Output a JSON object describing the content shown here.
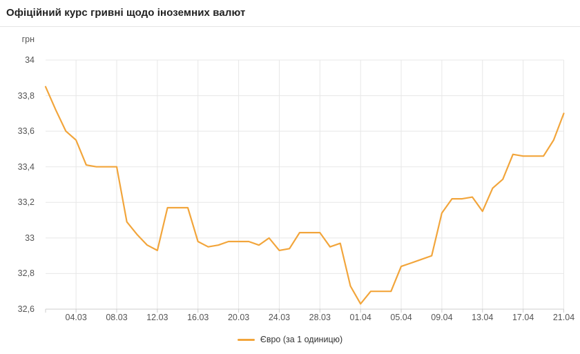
{
  "header": {
    "title": "Офіційний курс гривні щодо іноземних валют"
  },
  "chart_data": {
    "type": "line",
    "title": "Офіційний курс гривні щодо іноземних валют",
    "ylabel": "грн",
    "ylim": [
      32.6,
      34
    ],
    "grid": true,
    "legend_position": "bottom",
    "x": [
      "01.03",
      "02.03",
      "03.03",
      "04.03",
      "05.03",
      "06.03",
      "07.03",
      "08.03",
      "09.03",
      "10.03",
      "11.03",
      "12.03",
      "13.03",
      "14.03",
      "15.03",
      "16.03",
      "17.03",
      "18.03",
      "19.03",
      "20.03",
      "21.03",
      "22.03",
      "23.03",
      "24.03",
      "25.03",
      "26.03",
      "27.03",
      "28.03",
      "29.03",
      "30.03",
      "31.03",
      "01.04",
      "02.04",
      "03.04",
      "04.04",
      "05.04",
      "06.04",
      "07.04",
      "08.04",
      "09.04",
      "10.04",
      "11.04",
      "12.04",
      "13.04",
      "14.04",
      "15.04",
      "16.04",
      "17.04",
      "18.04",
      "19.04",
      "20.04",
      "21.04"
    ],
    "series": [
      {
        "name": "Євро (за 1 одиницю)",
        "color": "#F2A53B",
        "values": [
          33.85,
          33.72,
          33.6,
          33.55,
          33.41,
          33.4,
          33.4,
          33.4,
          33.09,
          33.02,
          32.96,
          32.93,
          33.17,
          33.17,
          33.17,
          32.98,
          32.95,
          32.96,
          32.98,
          32.98,
          32.98,
          32.96,
          33.0,
          32.93,
          32.94,
          33.03,
          33.03,
          33.03,
          32.95,
          32.97,
          32.73,
          32.63,
          32.7,
          32.7,
          32.7,
          32.84,
          32.86,
          32.88,
          32.9,
          33.14,
          33.22,
          33.22,
          33.23,
          33.15,
          33.28,
          33.33,
          33.47,
          33.46,
          33.46,
          33.46,
          33.55,
          33.7
        ]
      }
    ],
    "y_ticks": [
      {
        "value": 34,
        "label": "34"
      },
      {
        "value": 33.8,
        "label": "33,8"
      },
      {
        "value": 33.6,
        "label": "33,6"
      },
      {
        "value": 33.4,
        "label": "33,4"
      },
      {
        "value": 33.2,
        "label": "33,2"
      },
      {
        "value": 33,
        "label": "33"
      },
      {
        "value": 32.8,
        "label": "32,8"
      },
      {
        "value": 32.6,
        "label": "32,6"
      }
    ],
    "x_ticks": [
      "04.03",
      "08.03",
      "12.03",
      "16.03",
      "20.03",
      "24.03",
      "28.03",
      "01.04",
      "05.04",
      "09.04",
      "13.04",
      "17.04",
      "21.04"
    ]
  },
  "colors": {
    "accent": "#F2A53B",
    "grid": "#E7E7E7",
    "axis_line": "#CCCCCC",
    "axis_text": "#545454",
    "title_text": "#212121",
    "legend_text": "#333333",
    "header_border": "#E4E4E4",
    "background": "#FFFFFF"
  }
}
